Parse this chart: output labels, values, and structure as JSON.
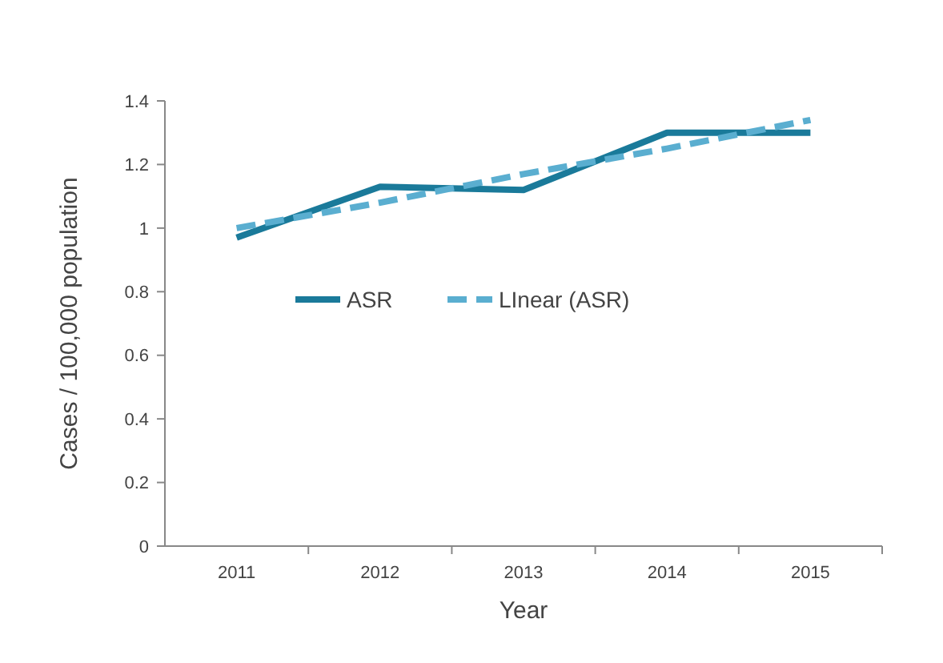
{
  "chart_data": {
    "type": "line",
    "xlabel": "Year",
    "ylabel": "Cases / 100,000 population",
    "categories": [
      "2011",
      "2012",
      "2013",
      "2014",
      "2015"
    ],
    "series": [
      {
        "name": "ASR",
        "color": "#1a7a9a",
        "values": [
          0.97,
          1.13,
          1.12,
          1.3,
          1.3
        ],
        "line_style": "solid"
      },
      {
        "name": "LInear (ASR)",
        "color": "#5aaed0",
        "values": [
          1.0,
          1.08,
          1.17,
          1.25,
          1.34
        ],
        "line_style": "dashed"
      }
    ],
    "ylim": [
      0,
      1.4
    ],
    "yticks": [
      0,
      0.2,
      0.4,
      0.6,
      0.8,
      1,
      1.2,
      1.4
    ],
    "legend": "center",
    "marker": "none"
  }
}
